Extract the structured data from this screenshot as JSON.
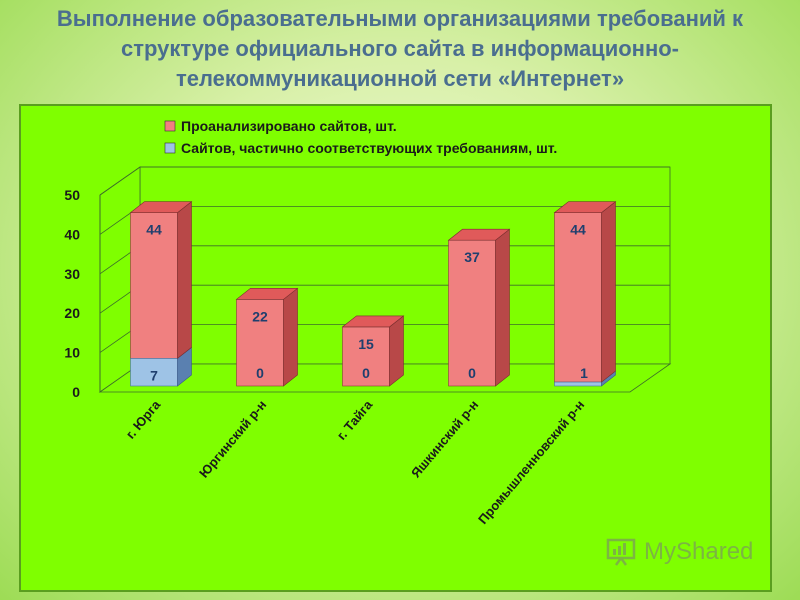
{
  "slide": {
    "title_lines": [
      "Выполнение образовательными организациями требований к",
      "структуре официального сайта в информационно-",
      "телекоммуникационной сети «Интернет»"
    ]
  },
  "watermark": {
    "text": "MyShared"
  },
  "chart_data": {
    "type": "bar",
    "stacked": true,
    "three_d": true,
    "categories": [
      "г. Юрга",
      "Юргинский р-н",
      "г. Тайга",
      "Яшкинский р-н",
      "Промышленновский р-н"
    ],
    "series": [
      {
        "name": "Проанализировано сайтов, шт.",
        "values": [
          44,
          22,
          15,
          37,
          44
        ],
        "color": "#f08080"
      },
      {
        "name": "Сайтов, частично соответствующих требованиям, шт.",
        "values": [
          7,
          0,
          0,
          0,
          1
        ],
        "color": "#9ec3e6"
      }
    ],
    "y_ticks": [
      0,
      10,
      20,
      30,
      40,
      50
    ],
    "ylim": [
      0,
      50
    ],
    "grid": true,
    "legend_position": "top-left",
    "colors": {
      "panel": "#7fff00",
      "label": "#1f3f6e",
      "bar_top": "#e05a5a",
      "bar_side": "#b84848"
    }
  }
}
